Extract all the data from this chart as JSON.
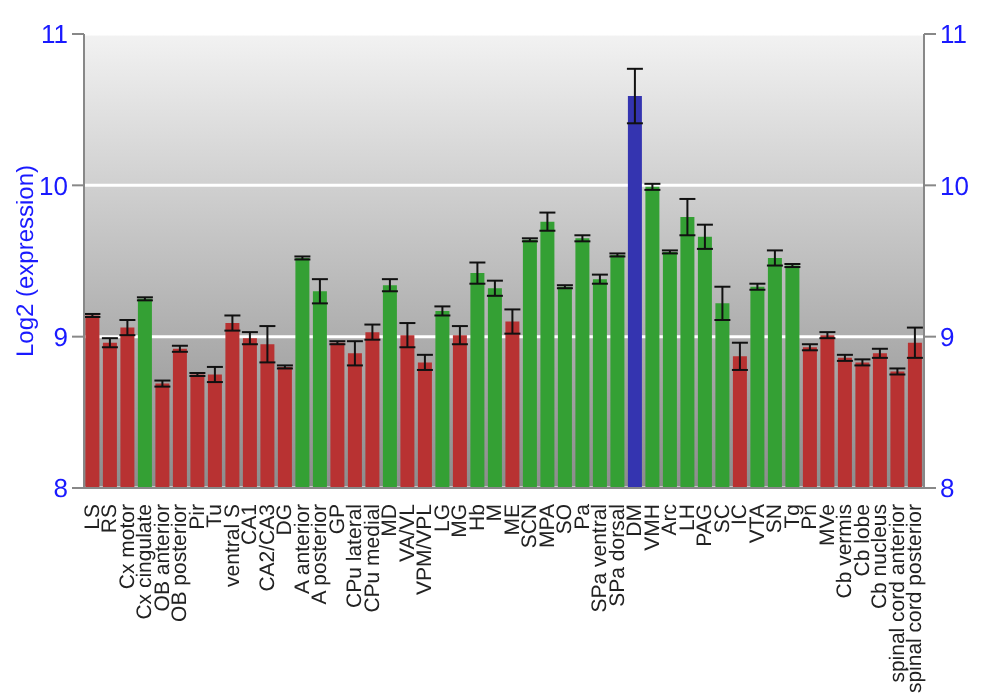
{
  "chart_data": {
    "type": "bar",
    "ylabel": "Log2 (expression)",
    "categories": [
      "LS",
      "RS",
      "Cx motor",
      "Cx cingulate",
      "OB anterior",
      "OB posterior",
      "Pir",
      "Tu",
      "ventral S",
      "CA1",
      "CA2/CA3",
      "DG",
      "A anterior",
      "A posterior",
      "GP",
      "CPu lateral",
      "CPu medial",
      "MD",
      "VA/VL",
      "VPM/VPL",
      "LG",
      "MG",
      "Hb",
      "M",
      "ME",
      "SCN",
      "MPA",
      "SO",
      "Pa",
      "SPa ventral",
      "SPa dorsal",
      "DM",
      "VMH",
      "Arc",
      "LH",
      "PAG",
      "SC",
      "IC",
      "VTA",
      "SN",
      "Tg",
      "Pn",
      "MVe",
      "Cb vermis",
      "Cb lobe",
      "Cb nucleus",
      "spinal cord anterior",
      "spinal cord posterior"
    ],
    "values": [
      9.14,
      8.96,
      9.06,
      9.25,
      8.69,
      8.92,
      8.75,
      8.75,
      9.09,
      8.99,
      8.95,
      8.8,
      9.52,
      9.3,
      8.96,
      8.89,
      9.03,
      9.34,
      9.01,
      8.83,
      9.17,
      9.01,
      9.42,
      9.32,
      9.1,
      9.64,
      9.76,
      9.33,
      9.65,
      9.38,
      9.54,
      10.59,
      9.99,
      9.56,
      9.79,
      9.66,
      9.22,
      8.87,
      9.33,
      9.52,
      9.47,
      8.93,
      9.01,
      8.86,
      8.83,
      8.89,
      8.77,
      8.96
    ],
    "errors": [
      0.01,
      0.03,
      0.05,
      0.01,
      0.02,
      0.02,
      0.01,
      0.05,
      0.05,
      0.04,
      0.12,
      0.01,
      0.01,
      0.08,
      0.01,
      0.08,
      0.05,
      0.04,
      0.08,
      0.05,
      0.03,
      0.06,
      0.07,
      0.05,
      0.08,
      0.01,
      0.06,
      0.01,
      0.02,
      0.03,
      0.01,
      0.18,
      0.02,
      0.01,
      0.12,
      0.08,
      0.11,
      0.09,
      0.02,
      0.05,
      0.01,
      0.02,
      0.02,
      0.02,
      0.02,
      0.03,
      0.02,
      0.1
    ],
    "colors": [
      "#b83232",
      "#b83232",
      "#b83232",
      "#34a034",
      "#b83232",
      "#b83232",
      "#b83232",
      "#b83232",
      "#b83232",
      "#b83232",
      "#b83232",
      "#b83232",
      "#34a034",
      "#34a034",
      "#b83232",
      "#b83232",
      "#b83232",
      "#34a034",
      "#b83232",
      "#b83232",
      "#34a034",
      "#b83232",
      "#34a034",
      "#34a034",
      "#b83232",
      "#34a034",
      "#34a034",
      "#34a034",
      "#34a034",
      "#34a034",
      "#34a034",
      "#3434b0",
      "#34a034",
      "#34a034",
      "#34a034",
      "#34a034",
      "#34a034",
      "#b83232",
      "#34a034",
      "#34a034",
      "#34a034",
      "#b83232",
      "#b83232",
      "#b83232",
      "#b83232",
      "#b83232",
      "#b83232",
      "#b83232"
    ],
    "ylim": [
      8,
      11
    ],
    "yticks": [
      8,
      9,
      10,
      11
    ],
    "y2lim": [
      8,
      11
    ],
    "y2ticks": [
      8,
      9,
      10,
      11
    ],
    "grid": "y"
  }
}
